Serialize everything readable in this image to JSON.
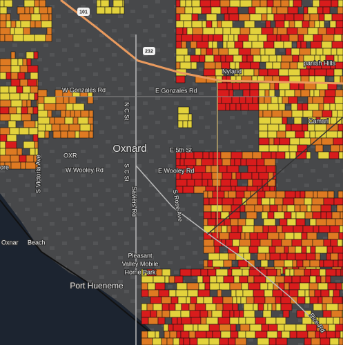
{
  "map": {
    "shields": [
      "101",
      "232"
    ],
    "city": "Oxnard",
    "places": [
      "Nyland",
      "panish Hills",
      "Camari",
      "OXR",
      "ore",
      "Oxnar",
      "Beach",
      "Pleasant",
      "Valley Mobile",
      "Home Park",
      "Port Hueneme"
    ],
    "streets": [
      "W Gonzales Rd",
      "E Gonzales Rd",
      "N C St",
      "E 5th St",
      "W Wooley Rd",
      "E Wooley Rd",
      "S Victoria Ave",
      "S C St",
      "Saviers Rd",
      "S Rose Ave",
      "Rice Rd"
    ]
  }
}
